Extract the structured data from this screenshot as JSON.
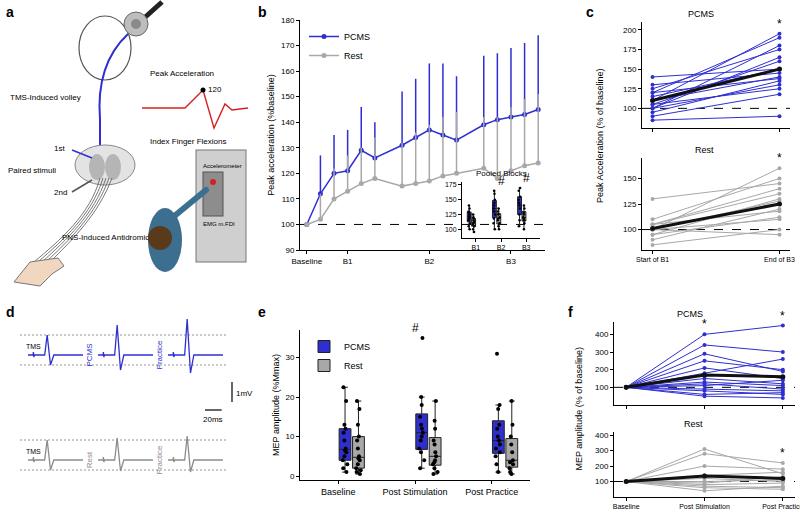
{
  "chart_data": [
    {
      "label": "b",
      "type": "line",
      "ylabel": "Peak acceleration (%baseline)",
      "x": [
        0,
        1,
        2,
        3,
        4,
        5,
        7,
        8,
        9,
        10,
        11,
        13,
        14,
        15,
        16,
        17
      ],
      "xlim": [
        -0.5,
        17.5
      ],
      "xticks": [
        {
          "value": 0,
          "label": "Baseline"
        },
        {
          "value": 3,
          "label": "B1"
        },
        {
          "value": 9,
          "label": "B2"
        },
        {
          "value": 15,
          "label": "B3"
        }
      ],
      "ylim": [
        90,
        180
      ],
      "yticks": [
        90,
        100,
        110,
        120,
        130,
        140,
        150,
        160,
        170,
        180
      ],
      "reference": 100,
      "legend": "upper left",
      "series": [
        {
          "name": "PCMS",
          "color": "#2f2fd1",
          "values": [
            100,
            112,
            120,
            121,
            129,
            126,
            131,
            134,
            137,
            135,
            133,
            139,
            141,
            142,
            143,
            145
          ],
          "error": [
            0,
            15,
            15,
            16,
            17,
            14,
            21,
            23,
            26,
            28,
            25,
            27,
            26,
            27,
            28,
            29
          ]
        },
        {
          "name": "Rest",
          "color": "#a8a8a8",
          "values": [
            100,
            102,
            110,
            113,
            116,
            118,
            115,
            116,
            117,
            119,
            120,
            122,
            118,
            121,
            123,
            124
          ],
          "error": [
            0,
            10,
            12,
            14,
            14,
            16,
            17,
            20,
            22,
            23,
            24,
            20,
            24,
            25,
            26,
            27
          ]
        }
      ],
      "inset": {
        "title": "Pooled Blocks",
        "type": "box",
        "categories": [
          "B1",
          "B2",
          "B3"
        ],
        "ylim": [
          85,
          180
        ],
        "yticks": [
          100,
          125,
          150,
          175
        ],
        "series": [
          {
            "color": "#2f2fd1",
            "points": [
              [
                100,
                105,
                110,
                115,
                118,
                120,
                122,
                125,
                128,
                130,
                135,
                140
              ],
              [
                100,
                110,
                118,
                125,
                130,
                135,
                140,
                145,
                150,
                160,
                165
              ],
              [
                105,
                115,
                125,
                135,
                140,
                145,
                150,
                155,
                165,
                170
              ]
            ]
          },
          {
            "color": "#a8a8a8",
            "points": [
              [
                95,
                100,
                105,
                108,
                110,
                112,
                115,
                118,
                120,
                125
              ],
              [
                100,
                105,
                110,
                115,
                118,
                120,
                125,
                130,
                135
              ],
              [
                100,
                110,
                115,
                118,
                120,
                125,
                128,
                135,
                140
              ]
            ]
          }
        ],
        "annotations": [
          {
            "category": "B2",
            "text": "#"
          },
          {
            "category": "B3",
            "text": "#"
          }
        ]
      }
    },
    {
      "label": "c",
      "type": "line",
      "ylabel": "Peak Acceleration (% of baseline)",
      "panels": [
        {
          "title": "PCMS",
          "categories": [
            "Start of B1",
            "End of B3"
          ],
          "ylim": [
            75,
            210
          ],
          "yticks": [
            100,
            125,
            150,
            175,
            200
          ],
          "tick_labels": "y",
          "color": "#2f2fd1",
          "reference": 100,
          "series": [
            {
              "values": [
                100,
                180
              ]
            },
            {
              "values": [
                110,
                195
              ]
            },
            {
              "values": [
                120,
                190
              ]
            },
            {
              "values": [
                125,
                175
              ]
            },
            {
              "values": [
                140,
                150
              ]
            },
            {
              "values": [
                100,
                165
              ]
            },
            {
              "values": [
                105,
                160
              ]
            },
            {
              "values": [
                115,
                150
              ]
            },
            {
              "values": [
                130,
                145
              ]
            },
            {
              "values": [
                110,
                140
              ]
            },
            {
              "values": [
                120,
                138
              ]
            },
            {
              "values": [
                95,
                135
              ]
            },
            {
              "values": [
                100,
                130
              ]
            },
            {
              "values": [
                105,
                125
              ]
            },
            {
              "values": [
                90,
                118
              ]
            },
            {
              "values": [
                85,
                90
              ]
            }
          ],
          "mean": [
            110,
            150
          ],
          "annotations": [
            {
              "category": "End of B3",
              "text": "*"
            }
          ]
        },
        {
          "title": "Rest",
          "categories": [
            "Start of B1",
            "End of B3"
          ],
          "ylim": [
            80,
            170
          ],
          "yticks": [
            100,
            125,
            150
          ],
          "color": "#a8a8a8",
          "reference": 100,
          "series": [
            {
              "values": [
                100,
                160
              ]
            },
            {
              "values": [
                110,
                150
              ]
            },
            {
              "values": [
                130,
                145
              ]
            },
            {
              "values": [
                105,
                135
              ]
            },
            {
              "values": [
                95,
                130
              ]
            },
            {
              "values": [
                100,
                128
              ]
            },
            {
              "values": [
                90,
                120
              ]
            },
            {
              "values": [
                105,
                118
              ]
            },
            {
              "values": [
                95,
                112
              ]
            },
            {
              "values": [
                100,
                110
              ]
            },
            {
              "values": [
                85,
                100
              ]
            },
            {
              "values": [
                100,
                95
              ]
            },
            {
              "values": [
                105,
                140
              ]
            }
          ],
          "mean": [
            101,
            125
          ],
          "annotations": [
            {
              "category": "End of B3",
              "text": "*"
            }
          ]
        }
      ]
    },
    {
      "label": "e",
      "type": "box",
      "ylabel": "MEP amplitude (%Mmax)",
      "categories": [
        "Baseline",
        "Post Stimulation",
        "Post Practice"
      ],
      "ylim": [
        -1,
        37
      ],
      "yticks": [
        0,
        10,
        20,
        30
      ],
      "legend": "upper left",
      "series": [
        {
          "name": "PCMS",
          "color": "#2f2fd1",
          "points": [
            [
              1,
              2,
              3,
              4,
              5,
              6,
              6.5,
              7,
              9,
              11,
              12,
              13,
              19,
              22.5
            ],
            [
              2,
              4,
              6,
              7,
              9,
              10,
              11,
              12,
              13,
              15,
              18,
              20,
              35
            ],
            [
              1,
              3,
              5,
              6,
              7,
              8,
              9,
              10,
              12,
              13,
              17,
              18,
              31
            ]
          ]
        },
        {
          "name": "Rest",
          "color": "#a8a8a8",
          "points": [
            [
              0.5,
              1,
              1.5,
              2,
              3,
              4,
              4.5,
              5,
              7,
              9,
              10,
              13,
              17,
              19
            ],
            [
              0.5,
              1,
              2,
              3,
              3.5,
              4,
              5,
              6,
              8,
              9,
              12,
              14,
              19
            ],
            [
              0.5,
              1,
              2,
              3,
              3.5,
              4,
              6,
              8,
              10,
              13,
              19
            ]
          ]
        }
      ],
      "annotations": [
        {
          "category": "Post Stimulation",
          "text": "#"
        }
      ]
    },
    {
      "label": "f",
      "type": "line",
      "ylabel": "MEP amplitude (% of baseline)",
      "panels": [
        {
          "title": "PCMS",
          "categories": [
            "Baseline",
            "Post Stimulation",
            "Post Practice"
          ],
          "ylim": [
            0,
            470
          ],
          "yticks": [
            100,
            200,
            300,
            400
          ],
          "tick_labels": "y",
          "color": "#2f2fd1",
          "reference": 100,
          "series": [
            {
              "values": [
                100,
                400,
                450
              ]
            },
            {
              "values": [
                100,
                340,
                300
              ]
            },
            {
              "values": [
                100,
                290,
                190
              ]
            },
            {
              "values": [
                100,
                250,
                200
              ]
            },
            {
              "values": [
                100,
                210,
                150
              ]
            },
            {
              "values": [
                100,
                180,
                260
              ]
            },
            {
              "values": [
                100,
                150,
                120
              ]
            },
            {
              "values": [
                100,
                130,
                110
              ]
            },
            {
              "values": [
                100,
                120,
                90
              ]
            },
            {
              "values": [
                100,
                110,
                140
              ]
            },
            {
              "values": [
                100,
                90,
                80
              ]
            },
            {
              "values": [
                100,
                80,
                60
              ]
            },
            {
              "values": [
                100,
                60,
                70
              ]
            },
            {
              "values": [
                100,
                50,
                40
              ]
            }
          ],
          "mean": [
            100,
            170,
            160
          ],
          "annotations": [
            {
              "category": "Post Stimulation",
              "text": "*"
            },
            {
              "category": "Post Practice",
              "text": "*"
            }
          ]
        },
        {
          "title": "Rest",
          "categories": [
            "Baseline",
            "Post Stimulation",
            "Post Practice"
          ],
          "ylim": [
            0,
            420
          ],
          "yticks": [
            100,
            200,
            300,
            400
          ],
          "color": "#a8a8a8",
          "reference": 100,
          "series": [
            {
              "values": [
                100,
                310,
                150
              ]
            },
            {
              "values": [
                100,
                280,
                220
              ]
            },
            {
              "values": [
                100,
                200,
                180
              ]
            },
            {
              "values": [
                100,
                140,
                160
              ]
            },
            {
              "values": [
                100,
                120,
                100
              ]
            },
            {
              "values": [
                100,
                100,
                110
              ]
            },
            {
              "values": [
                100,
                90,
                130
              ]
            },
            {
              "values": [
                100,
                80,
                90
              ]
            },
            {
              "values": [
                100,
                70,
                60
              ]
            },
            {
              "values": [
                100,
                60,
                50
              ]
            },
            {
              "values": [
                100,
                40,
                70
              ]
            }
          ],
          "mean": [
            100,
            135,
            120
          ],
          "annotations": [
            {
              "category": "Post Practice",
              "text": "*"
            }
          ]
        }
      ]
    }
  ],
  "diagram": {
    "label": "a",
    "texts": {
      "tms": "TMS-Induced volley",
      "first": "1st",
      "paired": "Paired stimuli",
      "second": "2nd",
      "pns": "PNS-Induced Antidromic Volley",
      "peak": "Peak Acceleration",
      "peak_value": 120,
      "task": "Index Finger Flexions",
      "accelerometer": "Accelerometer",
      "emg": "EMG m.FDI"
    }
  },
  "traces": {
    "label": "d",
    "stimulus": "TMS",
    "rows": [
      {
        "color": "#2f2fd1",
        "conditions": [
          "PCMS",
          "Practice"
        ],
        "amplitudes": [
          1.0,
          1.5,
          1.8
        ]
      },
      {
        "color": "#8c8c8c",
        "conditions": [
          "Rest",
          "Practice"
        ],
        "amplitudes": [
          1.0,
          1.1,
          1.2
        ]
      }
    ],
    "scale": {
      "amplitude": 1,
      "amplitude_label": "1mV",
      "time": 20,
      "time_label": "20ms"
    }
  }
}
